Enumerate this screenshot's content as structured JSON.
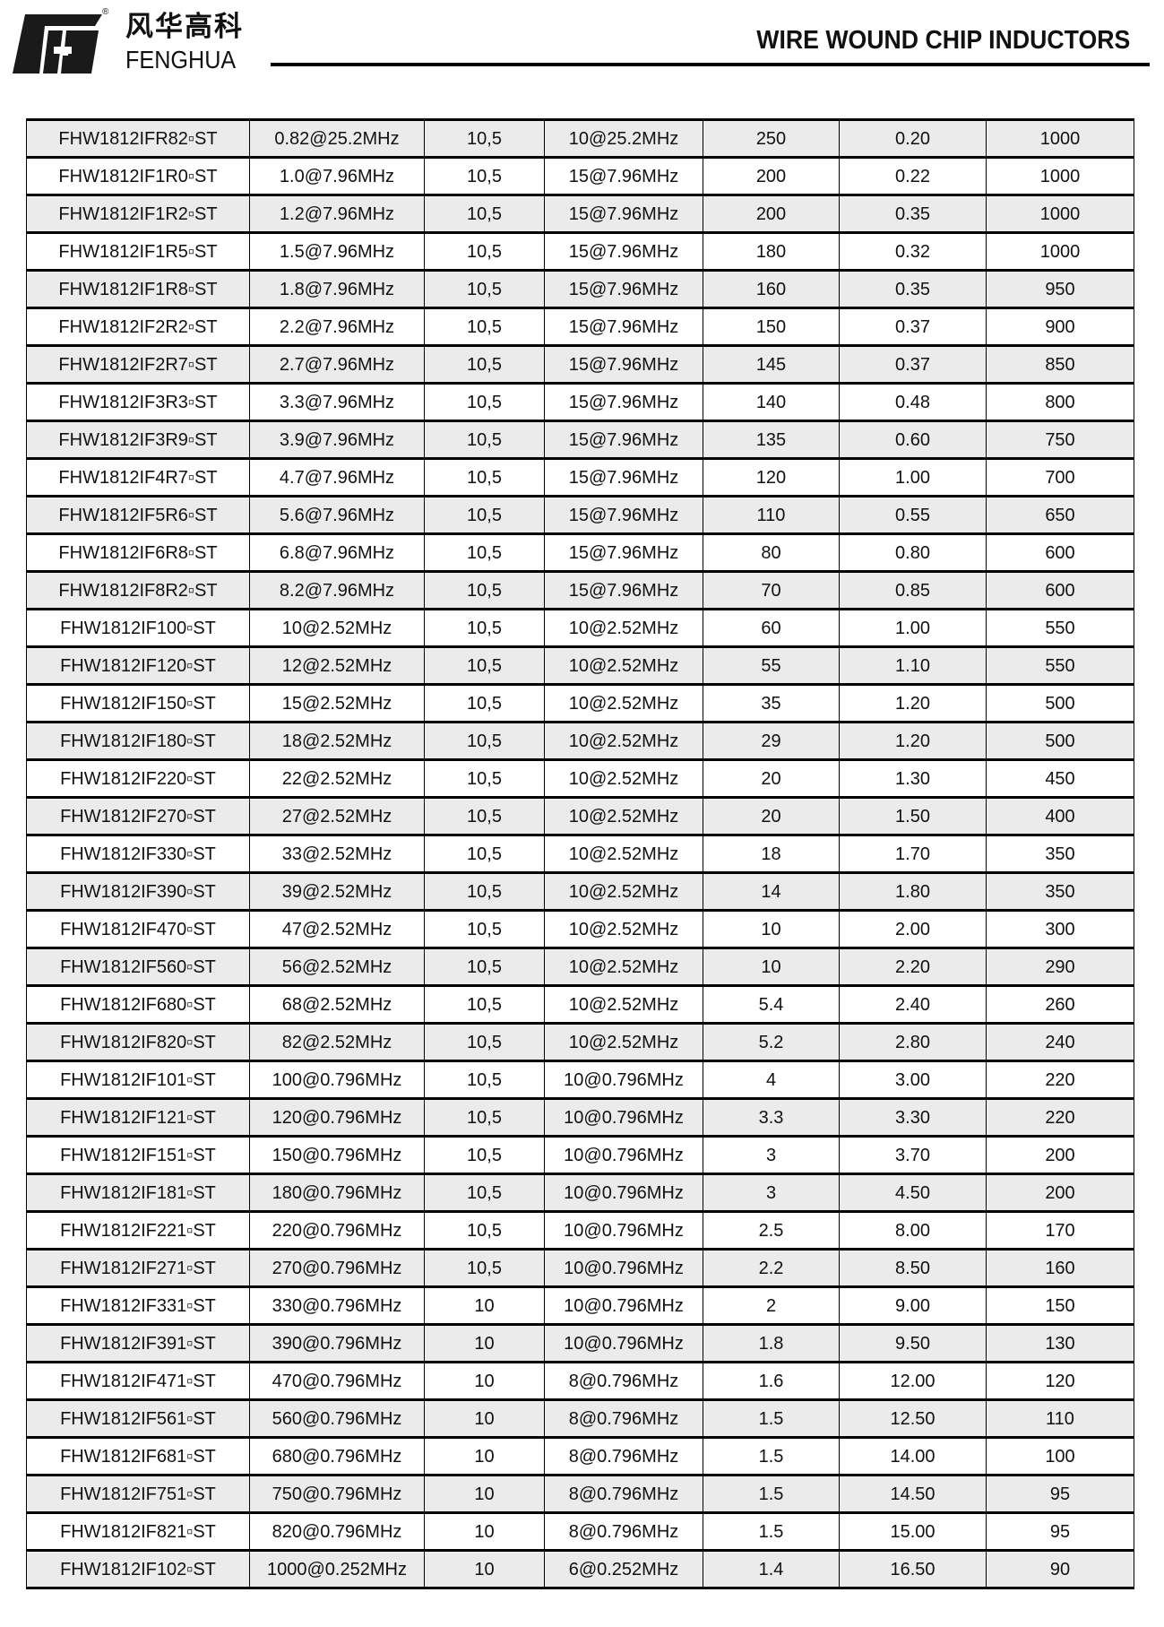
{
  "header": {
    "logo_cn": "风华高科",
    "logo_en": "FENGHUA",
    "registered": "®",
    "title": "WIRE WOUND CHIP INDUCTORS"
  },
  "rows": [
    [
      "FHW1812IFR82▫ST",
      "0.82@25.2MHz",
      "10,5",
      "10@25.2MHz",
      "250",
      "0.20",
      "1000"
    ],
    [
      "FHW1812IF1R0▫ST",
      "1.0@7.96MHz",
      "10,5",
      "15@7.96MHz",
      "200",
      "0.22",
      "1000"
    ],
    [
      "FHW1812IF1R2▫ST",
      "1.2@7.96MHz",
      "10,5",
      "15@7.96MHz",
      "200",
      "0.35",
      "1000"
    ],
    [
      "FHW1812IF1R5▫ST",
      "1.5@7.96MHz",
      "10,5",
      "15@7.96MHz",
      "180",
      "0.32",
      "1000"
    ],
    [
      "FHW1812IF1R8▫ST",
      "1.8@7.96MHz",
      "10,5",
      "15@7.96MHz",
      "160",
      "0.35",
      "950"
    ],
    [
      "FHW1812IF2R2▫ST",
      "2.2@7.96MHz",
      "10,5",
      "15@7.96MHz",
      "150",
      "0.37",
      "900"
    ],
    [
      "FHW1812IF2R7▫ST",
      "2.7@7.96MHz",
      "10,5",
      "15@7.96MHz",
      "145",
      "0.37",
      "850"
    ],
    [
      "FHW1812IF3R3▫ST",
      "3.3@7.96MHz",
      "10,5",
      "15@7.96MHz",
      "140",
      "0.48",
      "800"
    ],
    [
      "FHW1812IF3R9▫ST",
      "3.9@7.96MHz",
      "10,5",
      "15@7.96MHz",
      "135",
      "0.60",
      "750"
    ],
    [
      "FHW1812IF4R7▫ST",
      "4.7@7.96MHz",
      "10,5",
      "15@7.96MHz",
      "120",
      "1.00",
      "700"
    ],
    [
      "FHW1812IF5R6▫ST",
      "5.6@7.96MHz",
      "10,5",
      "15@7.96MHz",
      "110",
      "0.55",
      "650"
    ],
    [
      "FHW1812IF6R8▫ST",
      "6.8@7.96MHz",
      "10,5",
      "15@7.96MHz",
      "80",
      "0.80",
      "600"
    ],
    [
      "FHW1812IF8R2▫ST",
      "8.2@7.96MHz",
      "10,5",
      "15@7.96MHz",
      "70",
      "0.85",
      "600"
    ],
    [
      "FHW1812IF100▫ST",
      "10@2.52MHz",
      "10,5",
      "10@2.52MHz",
      "60",
      "1.00",
      "550"
    ],
    [
      "FHW1812IF120▫ST",
      "12@2.52MHz",
      "10,5",
      "10@2.52MHz",
      "55",
      "1.10",
      "550"
    ],
    [
      "FHW1812IF150▫ST",
      "15@2.52MHz",
      "10,5",
      "10@2.52MHz",
      "35",
      "1.20",
      "500"
    ],
    [
      "FHW1812IF180▫ST",
      "18@2.52MHz",
      "10,5",
      "10@2.52MHz",
      "29",
      "1.20",
      "500"
    ],
    [
      "FHW1812IF220▫ST",
      "22@2.52MHz",
      "10,5",
      "10@2.52MHz",
      "20",
      "1.30",
      "450"
    ],
    [
      "FHW1812IF270▫ST",
      "27@2.52MHz",
      "10,5",
      "10@2.52MHz",
      "20",
      "1.50",
      "400"
    ],
    [
      "FHW1812IF330▫ST",
      "33@2.52MHz",
      "10,5",
      "10@2.52MHz",
      "18",
      "1.70",
      "350"
    ],
    [
      "FHW1812IF390▫ST",
      "39@2.52MHz",
      "10,5",
      "10@2.52MHz",
      "14",
      "1.80",
      "350"
    ],
    [
      "FHW1812IF470▫ST",
      "47@2.52MHz",
      "10,5",
      "10@2.52MHz",
      "10",
      "2.00",
      "300"
    ],
    [
      "FHW1812IF560▫ST",
      "56@2.52MHz",
      "10,5",
      "10@2.52MHz",
      "10",
      "2.20",
      "290"
    ],
    [
      "FHW1812IF680▫ST",
      "68@2.52MHz",
      "10,5",
      "10@2.52MHz",
      "5.4",
      "2.40",
      "260"
    ],
    [
      "FHW1812IF820▫ST",
      "82@2.52MHz",
      "10,5",
      "10@2.52MHz",
      "5.2",
      "2.80",
      "240"
    ],
    [
      "FHW1812IF101▫ST",
      "100@0.796MHz",
      "10,5",
      "10@0.796MHz",
      "4",
      "3.00",
      "220"
    ],
    [
      "FHW1812IF121▫ST",
      "120@0.796MHz",
      "10,5",
      "10@0.796MHz",
      "3.3",
      "3.30",
      "220"
    ],
    [
      "FHW1812IF151▫ST",
      "150@0.796MHz",
      "10,5",
      "10@0.796MHz",
      "3",
      "3.70",
      "200"
    ],
    [
      "FHW1812IF181▫ST",
      "180@0.796MHz",
      "10,5",
      "10@0.796MHz",
      "3",
      "4.50",
      "200"
    ],
    [
      "FHW1812IF221▫ST",
      "220@0.796MHz",
      "10,5",
      "10@0.796MHz",
      "2.5",
      "8.00",
      "170"
    ],
    [
      "FHW1812IF271▫ST",
      "270@0.796MHz",
      "10,5",
      "10@0.796MHz",
      "2.2",
      "8.50",
      "160"
    ],
    [
      "FHW1812IF331▫ST",
      "330@0.796MHz",
      "10",
      "10@0.796MHz",
      "2",
      "9.00",
      "150"
    ],
    [
      "FHW1812IF391▫ST",
      "390@0.796MHz",
      "10",
      "10@0.796MHz",
      "1.8",
      "9.50",
      "130"
    ],
    [
      "FHW1812IF471▫ST",
      "470@0.796MHz",
      "10",
      "8@0.796MHz",
      "1.6",
      "12.00",
      "120"
    ],
    [
      "FHW1812IF561▫ST",
      "560@0.796MHz",
      "10",
      "8@0.796MHz",
      "1.5",
      "12.50",
      "110"
    ],
    [
      "FHW1812IF681▫ST",
      "680@0.796MHz",
      "10",
      "8@0.796MHz",
      "1.5",
      "14.00",
      "100"
    ],
    [
      "FHW1812IF751▫ST",
      "750@0.796MHz",
      "10",
      "8@0.796MHz",
      "1.5",
      "14.50",
      "95"
    ],
    [
      "FHW1812IF821▫ST",
      "820@0.796MHz",
      "10",
      "8@0.796MHz",
      "1.5",
      "15.00",
      "95"
    ],
    [
      "FHW1812IF102▫ST",
      "1000@0.252MHz",
      "10",
      "6@0.252MHz",
      "1.4",
      "16.50",
      "90"
    ]
  ]
}
